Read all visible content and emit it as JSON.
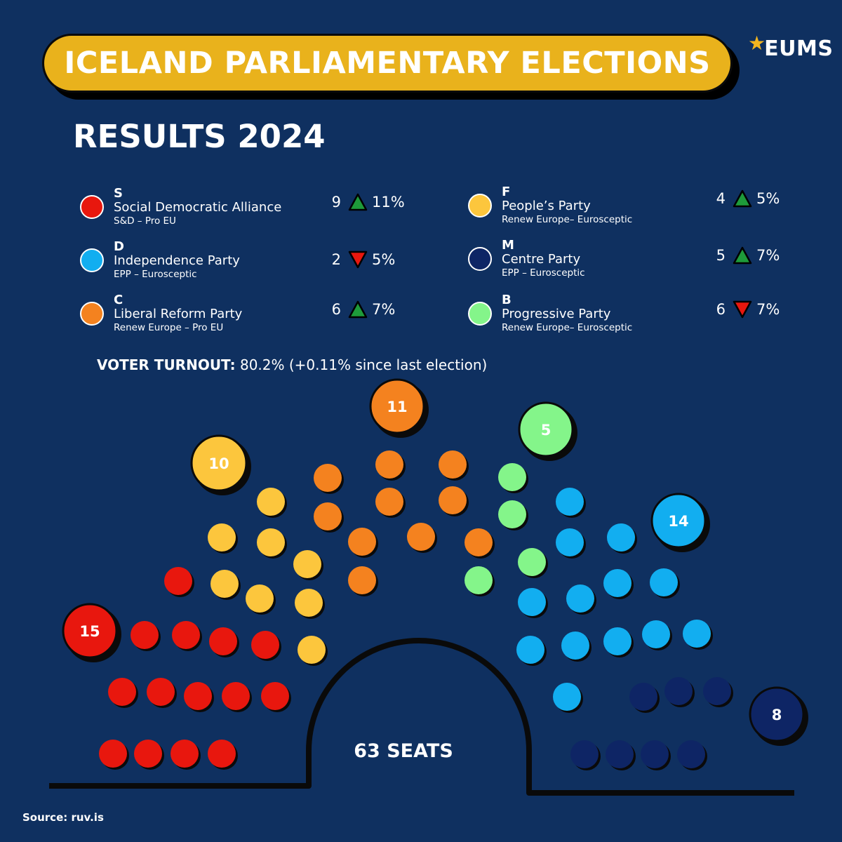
{
  "header": {
    "title": "ICELAND PARLIAMENTARY ELECTIONS",
    "subtitle": "RESULTS 2024",
    "logo_text": "EUMS",
    "logo_star": "★"
  },
  "parties": [
    {
      "code": "S",
      "name": "Social Democratic Alliance",
      "group": "S&D – Pro EU",
      "seats": "9",
      "trend": "up",
      "change": "11%",
      "color": "#e8170e"
    },
    {
      "code": "D",
      "name": "Independence Party",
      "group": "EPP – Eurosceptic",
      "seats": "2",
      "trend": "down",
      "change": "5%",
      "color": "#12aef0"
    },
    {
      "code": "C",
      "name": "Liberal Reform Party",
      "group": "Renew Europe – Pro EU",
      "seats": "6",
      "trend": "up",
      "change": "7%",
      "color": "#f4821f"
    },
    {
      "code": "F",
      "name": "People’s Party",
      "group": "Renew Europe– Eurosceptic",
      "seats": "4",
      "trend": "up",
      "change": "5%",
      "color": "#fcc63d"
    },
    {
      "code": "M",
      "name": "Centre Party",
      "group": "EPP – Eurosceptic",
      "seats": "5",
      "trend": "up",
      "change": "7%",
      "color": "#0e2565"
    },
    {
      "code": "B",
      "name": "Progressive Party",
      "group": "Renew Europe– Eurosceptic",
      "seats": "6",
      "trend": "down",
      "change": "7%",
      "color": "#84f58a"
    }
  ],
  "trend_colors": {
    "up": "#1e9b3a",
    "down": "#e8170e"
  },
  "turnout": {
    "label": "VOTER TURNOUT:",
    "value": "80.2% (+0.11% since last election)"
  },
  "chart_data": {
    "type": "parliament",
    "total_label": "63 SEATS",
    "total_seats": 63,
    "series": [
      {
        "party": "S",
        "seats": 15,
        "color": "#e8170e"
      },
      {
        "party": "F",
        "seats": 10,
        "color": "#fcc63d"
      },
      {
        "party": "C",
        "seats": 11,
        "color": "#f4821f"
      },
      {
        "party": "B",
        "seats": 5,
        "color": "#84f58a"
      },
      {
        "party": "D",
        "seats": 14,
        "color": "#12aef0"
      },
      {
        "party": "M",
        "seats": 8,
        "color": "#0e2565"
      }
    ]
  },
  "footer": {
    "source": "Source: ruv.is"
  }
}
